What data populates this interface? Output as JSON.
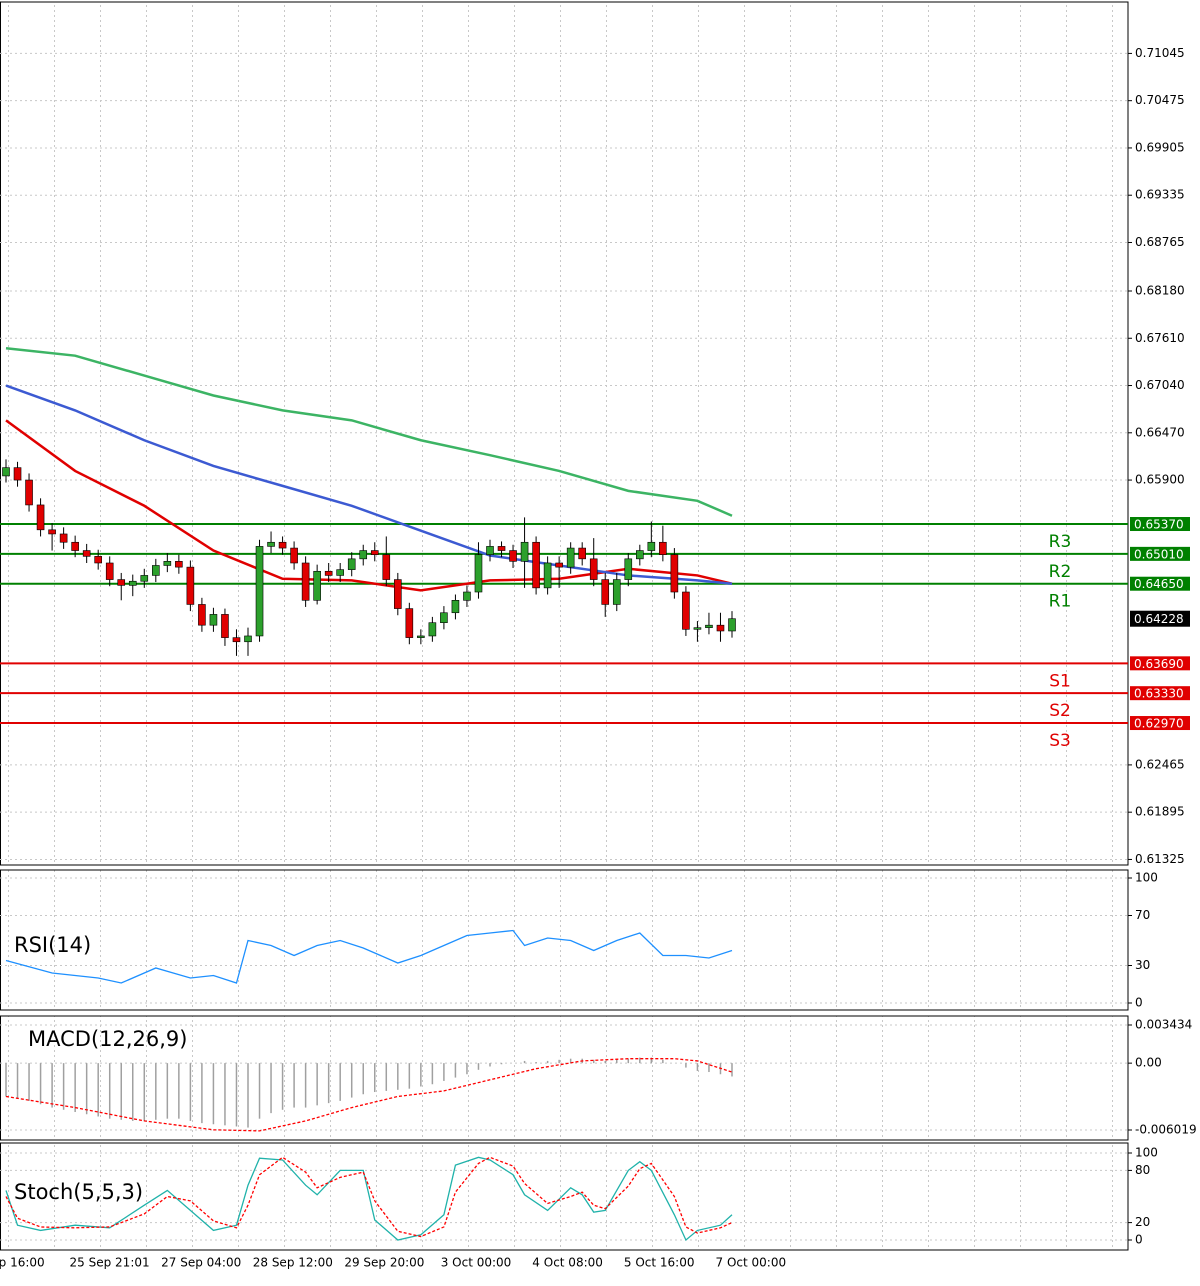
{
  "chart_data": [
    {
      "type": "candlestick",
      "open": [
        0.6595,
        0.6605,
        0.659,
        0.656,
        0.653,
        0.6525,
        0.6515,
        0.6505,
        0.6498,
        0.649,
        0.647,
        0.6463,
        0.6468,
        0.6475,
        0.6487,
        0.6492,
        0.6485,
        0.644,
        0.6415,
        0.6428,
        0.64,
        0.6395,
        0.6402,
        0.651,
        0.6515,
        0.6508,
        0.649,
        0.6445,
        0.648,
        0.6475,
        0.6482,
        0.6495,
        0.6505,
        0.65,
        0.647,
        0.6435,
        0.64,
        0.6402,
        0.6418,
        0.643,
        0.6445,
        0.6455,
        0.65,
        0.651,
        0.6505,
        0.6492,
        0.6515,
        0.646,
        0.649,
        0.6485,
        0.6508,
        0.6495,
        0.647,
        0.644,
        0.647,
        0.6495,
        0.6505,
        0.6515,
        0.65,
        0.6455,
        0.641,
        0.6412,
        0.6415,
        0.6408
      ],
      "high": [
        0.6615,
        0.6612,
        0.6598,
        0.6568,
        0.6538,
        0.6533,
        0.6523,
        0.6513,
        0.6506,
        0.6498,
        0.6478,
        0.6476,
        0.6483,
        0.6495,
        0.6502,
        0.65,
        0.6493,
        0.6448,
        0.6436,
        0.6435,
        0.641,
        0.6412,
        0.6518,
        0.6528,
        0.6522,
        0.6516,
        0.6498,
        0.6488,
        0.649,
        0.649,
        0.6503,
        0.6512,
        0.6515,
        0.6522,
        0.6478,
        0.6442,
        0.641,
        0.6425,
        0.6438,
        0.6452,
        0.6463,
        0.6515,
        0.6518,
        0.6516,
        0.6512,
        0.6545,
        0.6522,
        0.6498,
        0.6498,
        0.6515,
        0.6515,
        0.652,
        0.6478,
        0.6478,
        0.6502,
        0.6512,
        0.654,
        0.6535,
        0.6508,
        0.6462,
        0.642,
        0.643,
        0.643,
        0.6432
      ],
      "low": [
        0.6587,
        0.6582,
        0.6552,
        0.6522,
        0.6505,
        0.6507,
        0.6497,
        0.649,
        0.6482,
        0.6462,
        0.6445,
        0.645,
        0.646,
        0.6467,
        0.6479,
        0.6477,
        0.6432,
        0.6407,
        0.6407,
        0.639,
        0.6378,
        0.6378,
        0.6395,
        0.6502,
        0.65,
        0.6482,
        0.6437,
        0.644,
        0.6467,
        0.6467,
        0.6474,
        0.6487,
        0.6492,
        0.6462,
        0.6427,
        0.6392,
        0.6392,
        0.6395,
        0.641,
        0.6422,
        0.6437,
        0.6447,
        0.6492,
        0.6497,
        0.6484,
        0.646,
        0.6452,
        0.6452,
        0.646,
        0.6477,
        0.6487,
        0.6462,
        0.6425,
        0.6432,
        0.6462,
        0.6487,
        0.6497,
        0.6492,
        0.6447,
        0.6402,
        0.6395,
        0.6404,
        0.6395,
        0.64
      ],
      "close": [
        0.6605,
        0.659,
        0.656,
        0.653,
        0.6525,
        0.6515,
        0.6505,
        0.6498,
        0.649,
        0.647,
        0.6463,
        0.6468,
        0.6475,
        0.6487,
        0.6492,
        0.6485,
        0.644,
        0.6415,
        0.6428,
        0.64,
        0.6395,
        0.6402,
        0.651,
        0.6515,
        0.6508,
        0.649,
        0.6445,
        0.648,
        0.6475,
        0.6482,
        0.6495,
        0.6505,
        0.65,
        0.647,
        0.6435,
        0.64,
        0.6402,
        0.6418,
        0.643,
        0.6445,
        0.6455,
        0.65,
        0.651,
        0.6505,
        0.6492,
        0.6515,
        0.646,
        0.649,
        0.6485,
        0.6508,
        0.6495,
        0.647,
        0.644,
        0.647,
        0.6495,
        0.6505,
        0.6515,
        0.65,
        0.6455,
        0.641,
        0.6412,
        0.6415,
        0.6408,
        0.64228
      ],
      "color_up": "#2ca02c",
      "color_down": "#e00000",
      "ylim": [
        0.61258,
        0.71665
      ],
      "yticks": [
        0.71045,
        0.70475,
        0.69905,
        0.69335,
        0.68765,
        {
          "value": 0.6818,
          "label": "0.68180"
        },
        {
          "value": 0.6761,
          "label": "0.67610"
        },
        {
          "value": 0.6704,
          "label": "0.67040"
        },
        {
          "value": 0.6647,
          "label": "0.66470"
        },
        {
          "value": 0.659,
          "label": "0.65900"
        },
        0.62465,
        0.61895,
        0.61325
      ],
      "grid": true,
      "moving_averages": [
        {
          "color": "#e00000",
          "x": [
            0,
            6,
            12,
            18,
            24,
            30,
            36,
            42,
            48,
            54,
            60,
            63
          ],
          "values": [
            0.6662,
            0.6601,
            0.6559,
            0.6505,
            0.6471,
            0.6469,
            0.6457,
            0.6469,
            0.6471,
            0.6483,
            0.6475,
            0.6465
          ]
        },
        {
          "color": "#3c5ad2",
          "x": [
            0,
            6,
            12,
            18,
            24,
            30,
            36,
            42,
            48,
            54,
            60,
            63
          ],
          "values": [
            0.6704,
            0.6674,
            0.6638,
            0.6607,
            0.6583,
            0.6559,
            0.6529,
            0.6499,
            0.6487,
            0.6475,
            0.6469,
            0.6465
          ]
        },
        {
          "color": "#3cb464",
          "x": [
            0,
            6,
            12,
            18,
            24,
            30,
            36,
            42,
            48,
            54,
            60,
            63
          ],
          "values": [
            0.6749,
            0.674,
            0.6716,
            0.6692,
            0.6674,
            0.6662,
            0.6638,
            0.662,
            0.6601,
            0.6577,
            0.6565,
            0.6547
          ]
        }
      ],
      "levels": [
        {
          "name": "R3",
          "value": 0.6537,
          "label": "0.65370",
          "color": "#008000"
        },
        {
          "name": "R2",
          "value": 0.6501,
          "label": "0.65010",
          "color": "#008000"
        },
        {
          "name": "R1",
          "value": 0.6465,
          "label": "0.64650",
          "color": "#008000"
        },
        {
          "name": "S1",
          "value": 0.6369,
          "label": "0.63690",
          "color": "#e00000"
        },
        {
          "name": "S2",
          "value": 0.6333,
          "label": "0.63330",
          "color": "#e00000"
        },
        {
          "name": "S3",
          "value": 0.6297,
          "label": "0.62970",
          "color": "#e00000"
        }
      ],
      "last_price": 0.64228,
      "time_labels": [
        "ep 16:00",
        "25 Sep 21:01",
        "27 Sep 04:00",
        "28 Sep 12:00",
        "29 Sep 20:00",
        "3 Oct 00:00",
        "4 Oct 08:00",
        "5 Oct 16:00",
        "7 Oct 00:00"
      ]
    },
    {
      "type": "line",
      "title": "RSI(14)",
      "ylim": [
        -5.6,
        106.4
      ],
      "yticks": [
        100,
        70,
        30,
        0
      ],
      "grid": true,
      "series": [
        {
          "color": "#1e90ff",
          "style": "solid",
          "x": [
            0,
            4,
            8,
            10,
            13,
            16,
            18,
            20,
            21,
            23,
            25,
            27,
            29,
            31,
            34,
            36,
            38,
            40,
            42,
            44,
            45,
            47,
            49,
            51,
            53,
            55,
            57,
            59,
            61,
            63
          ],
          "values": [
            34,
            24,
            20,
            16,
            28,
            20,
            22,
            16,
            50,
            46,
            38,
            46,
            50,
            44,
            32,
            38,
            46,
            54,
            56,
            58,
            46,
            52,
            50,
            42,
            50,
            56,
            38,
            38,
            36,
            42
          ]
        }
      ]
    },
    {
      "type": "macd",
      "title": "MACD(12,26,9)",
      "ylim": [
        -0.006919,
        0.004244
      ],
      "yticks": [
        0.003434,
        {
          "value": 0,
          "label": "0.00"
        },
        -0.006019
      ],
      "grid": true,
      "histogram": [
        -0.003,
        -0.0032,
        -0.0034,
        -0.0037,
        -0.004,
        -0.0042,
        -0.0044,
        -0.0046,
        -0.0048,
        -0.005,
        -0.0051,
        -0.0052,
        -0.0052,
        -0.0051,
        -0.005,
        -0.005,
        -0.0052,
        -0.0054,
        -0.0055,
        -0.0056,
        -0.0057,
        -0.0058,
        -0.005,
        -0.0045,
        -0.0042,
        -0.004,
        -0.004,
        -0.0038,
        -0.0036,
        -0.0034,
        -0.0031,
        -0.0028,
        -0.0026,
        -0.0025,
        -0.0024,
        -0.0023,
        -0.0021,
        -0.0019,
        -0.0016,
        -0.0013,
        -0.001,
        -0.0006,
        -0.0003,
        -0.0001,
        0,
        0.0002,
        0.0001,
        0.0002,
        0.0003,
        0.0004,
        0.0004,
        0.0003,
        0.0002,
        0.0003,
        0.0004,
        0.0005,
        0.0005,
        0.0003,
        0,
        -0.0004,
        -0.0007,
        -0.0008,
        -0.001,
        -0.0012
      ],
      "histogram_color": "#a0a0a0",
      "series": [
        {
          "color": "#ff0000",
          "style": "dotted",
          "x": [
            0,
            6,
            12,
            18,
            22,
            26,
            30,
            34,
            38,
            42,
            46,
            50,
            54,
            58,
            60,
            63
          ],
          "values": [
            -0.003,
            -0.004,
            -0.0052,
            -0.006,
            -0.0061,
            -0.0052,
            -0.004,
            -0.003,
            -0.0025,
            -0.0015,
            -0.0005,
            0.0002,
            0.0004,
            0.0004,
            0.0002,
            -0.0008
          ]
        }
      ]
    },
    {
      "type": "line",
      "title": "Stoch(5,5,3)",
      "ylim": [
        -11.5,
        111.5
      ],
      "yticks": [
        100,
        80,
        20,
        0
      ],
      "grid": true,
      "series": [
        {
          "color": "#20b2aa",
          "style": "solid",
          "x": [
            0,
            1,
            3,
            6,
            9,
            12,
            14,
            16,
            18,
            20,
            21,
            22,
            24,
            26,
            27,
            29,
            31,
            32,
            34,
            36,
            38,
            39,
            41,
            42,
            44,
            45,
            47,
            49,
            50,
            51,
            52,
            54,
            55,
            56,
            58,
            59,
            60,
            62,
            63
          ],
          "values": [
            57,
            17,
            11,
            17,
            14,
            40,
            57,
            34,
            11,
            17,
            63,
            94,
            92,
            63,
            52,
            80,
            80,
            23,
            0,
            6,
            29,
            86,
            95,
            92,
            75,
            52,
            34,
            60,
            52,
            32,
            34,
            80,
            90,
            80,
            29,
            0,
            11,
            17,
            29
          ]
        },
        {
          "color": "#ff0000",
          "style": "dotted",
          "x": [
            0,
            1,
            3,
            6,
            9,
            12,
            14,
            16,
            18,
            20,
            21,
            22,
            24,
            26,
            27,
            29,
            31,
            32,
            34,
            36,
            38,
            39,
            41,
            42,
            44,
            45,
            47,
            49,
            50,
            51,
            52,
            54,
            55,
            56,
            58,
            59,
            60,
            62,
            63
          ],
          "values": [
            50,
            25,
            15,
            14,
            15,
            30,
            50,
            45,
            22,
            14,
            40,
            75,
            95,
            78,
            60,
            72,
            78,
            45,
            10,
            4,
            15,
            55,
            88,
            95,
            85,
            65,
            42,
            50,
            55,
            40,
            36,
            62,
            82,
            88,
            50,
            15,
            8,
            14,
            20
          ]
        }
      ]
    }
  ]
}
